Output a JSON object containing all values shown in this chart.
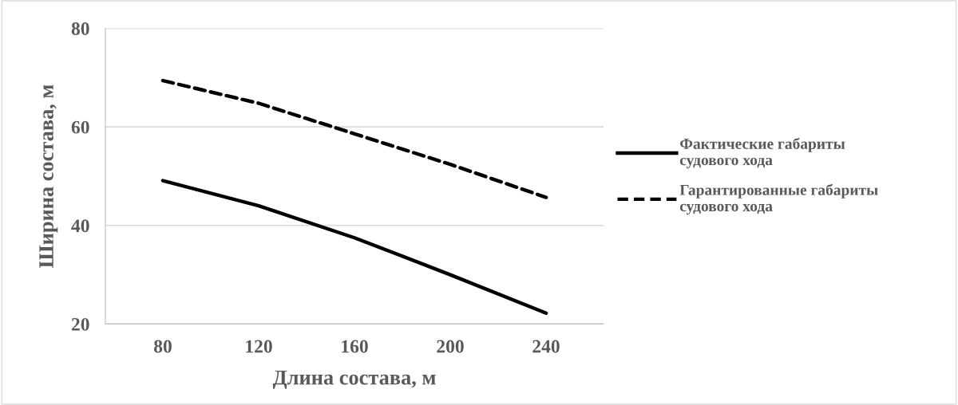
{
  "chart_data": {
    "type": "line",
    "xlabel": "Длина состава, м",
    "ylabel": "Ширина состава, м",
    "categories": [
      "80",
      "120",
      "160",
      "200",
      "240"
    ],
    "series": [
      {
        "name": "Фактические габариты судового хода",
        "color": "#000000",
        "line_style": "solid",
        "values": [
          49.1,
          44.0,
          37.5,
          30.0,
          22.2
        ]
      },
      {
        "name": "Гарантированные габариты судового хода",
        "color": "#000000",
        "line_style": "dashed",
        "values": [
          69.4,
          64.8,
          58.6,
          52.4,
          45.7
        ]
      }
    ],
    "ylim": [
      20,
      80
    ],
    "yticks": [
      20,
      40,
      60,
      80
    ],
    "grid": "y",
    "legend": "right",
    "marker": "none"
  }
}
